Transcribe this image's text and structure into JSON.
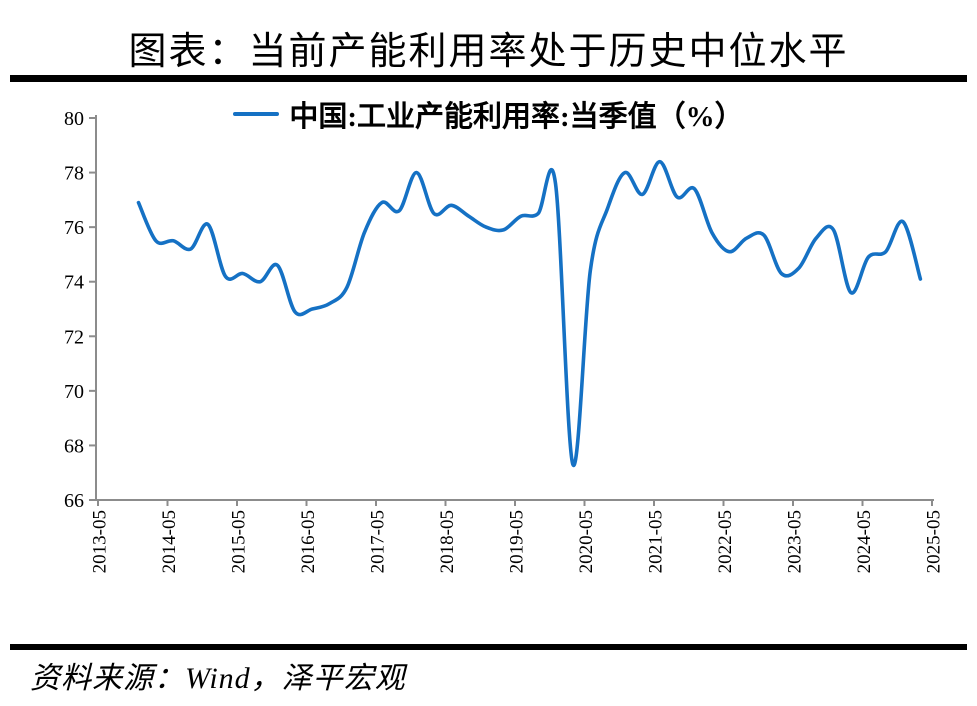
{
  "title": "图表：当前产能利用率处于历史中位水平",
  "legend": {
    "label": "中国:工业产能利用率:当季值（%）"
  },
  "source": "资料来源：Wind，泽平宏观",
  "colors": {
    "line": "#1571C4",
    "axis": "#8C8C8C",
    "text": "#000000",
    "rule": "#000000"
  },
  "chart_data": {
    "type": "line",
    "title": "图表：当前产能利用率处于历史中位水平",
    "ylabel": "",
    "xlabel": "",
    "ylim": [
      66,
      80
    ],
    "yticks": [
      66,
      68,
      70,
      72,
      74,
      76,
      78,
      80
    ],
    "xticks": [
      "2013-05",
      "2014-05",
      "2015-05",
      "2016-05",
      "2017-05",
      "2018-05",
      "2019-05",
      "2020-05",
      "2021-05",
      "2022-05",
      "2023-05",
      "2024-05",
      "2025-05"
    ],
    "grid": false,
    "legend_position": "top-center",
    "series": [
      {
        "name": "中国:工业产能利用率:当季值（%）",
        "points": [
          {
            "date": "2013-12",
            "value": 76.9
          },
          {
            "date": "2014-03",
            "value": 75.5
          },
          {
            "date": "2014-06",
            "value": 75.5
          },
          {
            "date": "2014-09",
            "value": 75.2
          },
          {
            "date": "2014-12",
            "value": 76.1
          },
          {
            "date": "2015-03",
            "value": 74.2
          },
          {
            "date": "2015-06",
            "value": 74.3
          },
          {
            "date": "2015-09",
            "value": 74.0
          },
          {
            "date": "2015-12",
            "value": 74.6
          },
          {
            "date": "2016-03",
            "value": 72.9
          },
          {
            "date": "2016-06",
            "value": 73.0
          },
          {
            "date": "2016-09",
            "value": 73.2
          },
          {
            "date": "2016-12",
            "value": 73.8
          },
          {
            "date": "2017-03",
            "value": 75.8
          },
          {
            "date": "2017-06",
            "value": 76.9
          },
          {
            "date": "2017-09",
            "value": 76.6
          },
          {
            "date": "2017-12",
            "value": 78.0
          },
          {
            "date": "2018-03",
            "value": 76.5
          },
          {
            "date": "2018-06",
            "value": 76.8
          },
          {
            "date": "2018-09",
            "value": 76.4
          },
          {
            "date": "2018-12",
            "value": 76.0
          },
          {
            "date": "2019-03",
            "value": 75.9
          },
          {
            "date": "2019-06",
            "value": 76.4
          },
          {
            "date": "2019-09",
            "value": 76.5
          },
          {
            "date": "2019-12",
            "value": 77.6
          },
          {
            "date": "2020-03",
            "value": 67.3
          },
          {
            "date": "2020-06",
            "value": 74.4
          },
          {
            "date": "2020-09",
            "value": 76.7
          },
          {
            "date": "2020-12",
            "value": 78.0
          },
          {
            "date": "2021-03",
            "value": 77.2
          },
          {
            "date": "2021-06",
            "value": 78.4
          },
          {
            "date": "2021-09",
            "value": 77.1
          },
          {
            "date": "2021-12",
            "value": 77.4
          },
          {
            "date": "2022-03",
            "value": 75.8
          },
          {
            "date": "2022-06",
            "value": 75.1
          },
          {
            "date": "2022-09",
            "value": 75.6
          },
          {
            "date": "2022-12",
            "value": 75.7
          },
          {
            "date": "2023-03",
            "value": 74.3
          },
          {
            "date": "2023-06",
            "value": 74.5
          },
          {
            "date": "2023-09",
            "value": 75.6
          },
          {
            "date": "2023-12",
            "value": 75.9
          },
          {
            "date": "2024-03",
            "value": 73.6
          },
          {
            "date": "2024-06",
            "value": 74.9
          },
          {
            "date": "2024-09",
            "value": 75.1
          },
          {
            "date": "2024-12",
            "value": 76.2
          },
          {
            "date": "2025-03",
            "value": 74.1
          }
        ]
      }
    ]
  }
}
